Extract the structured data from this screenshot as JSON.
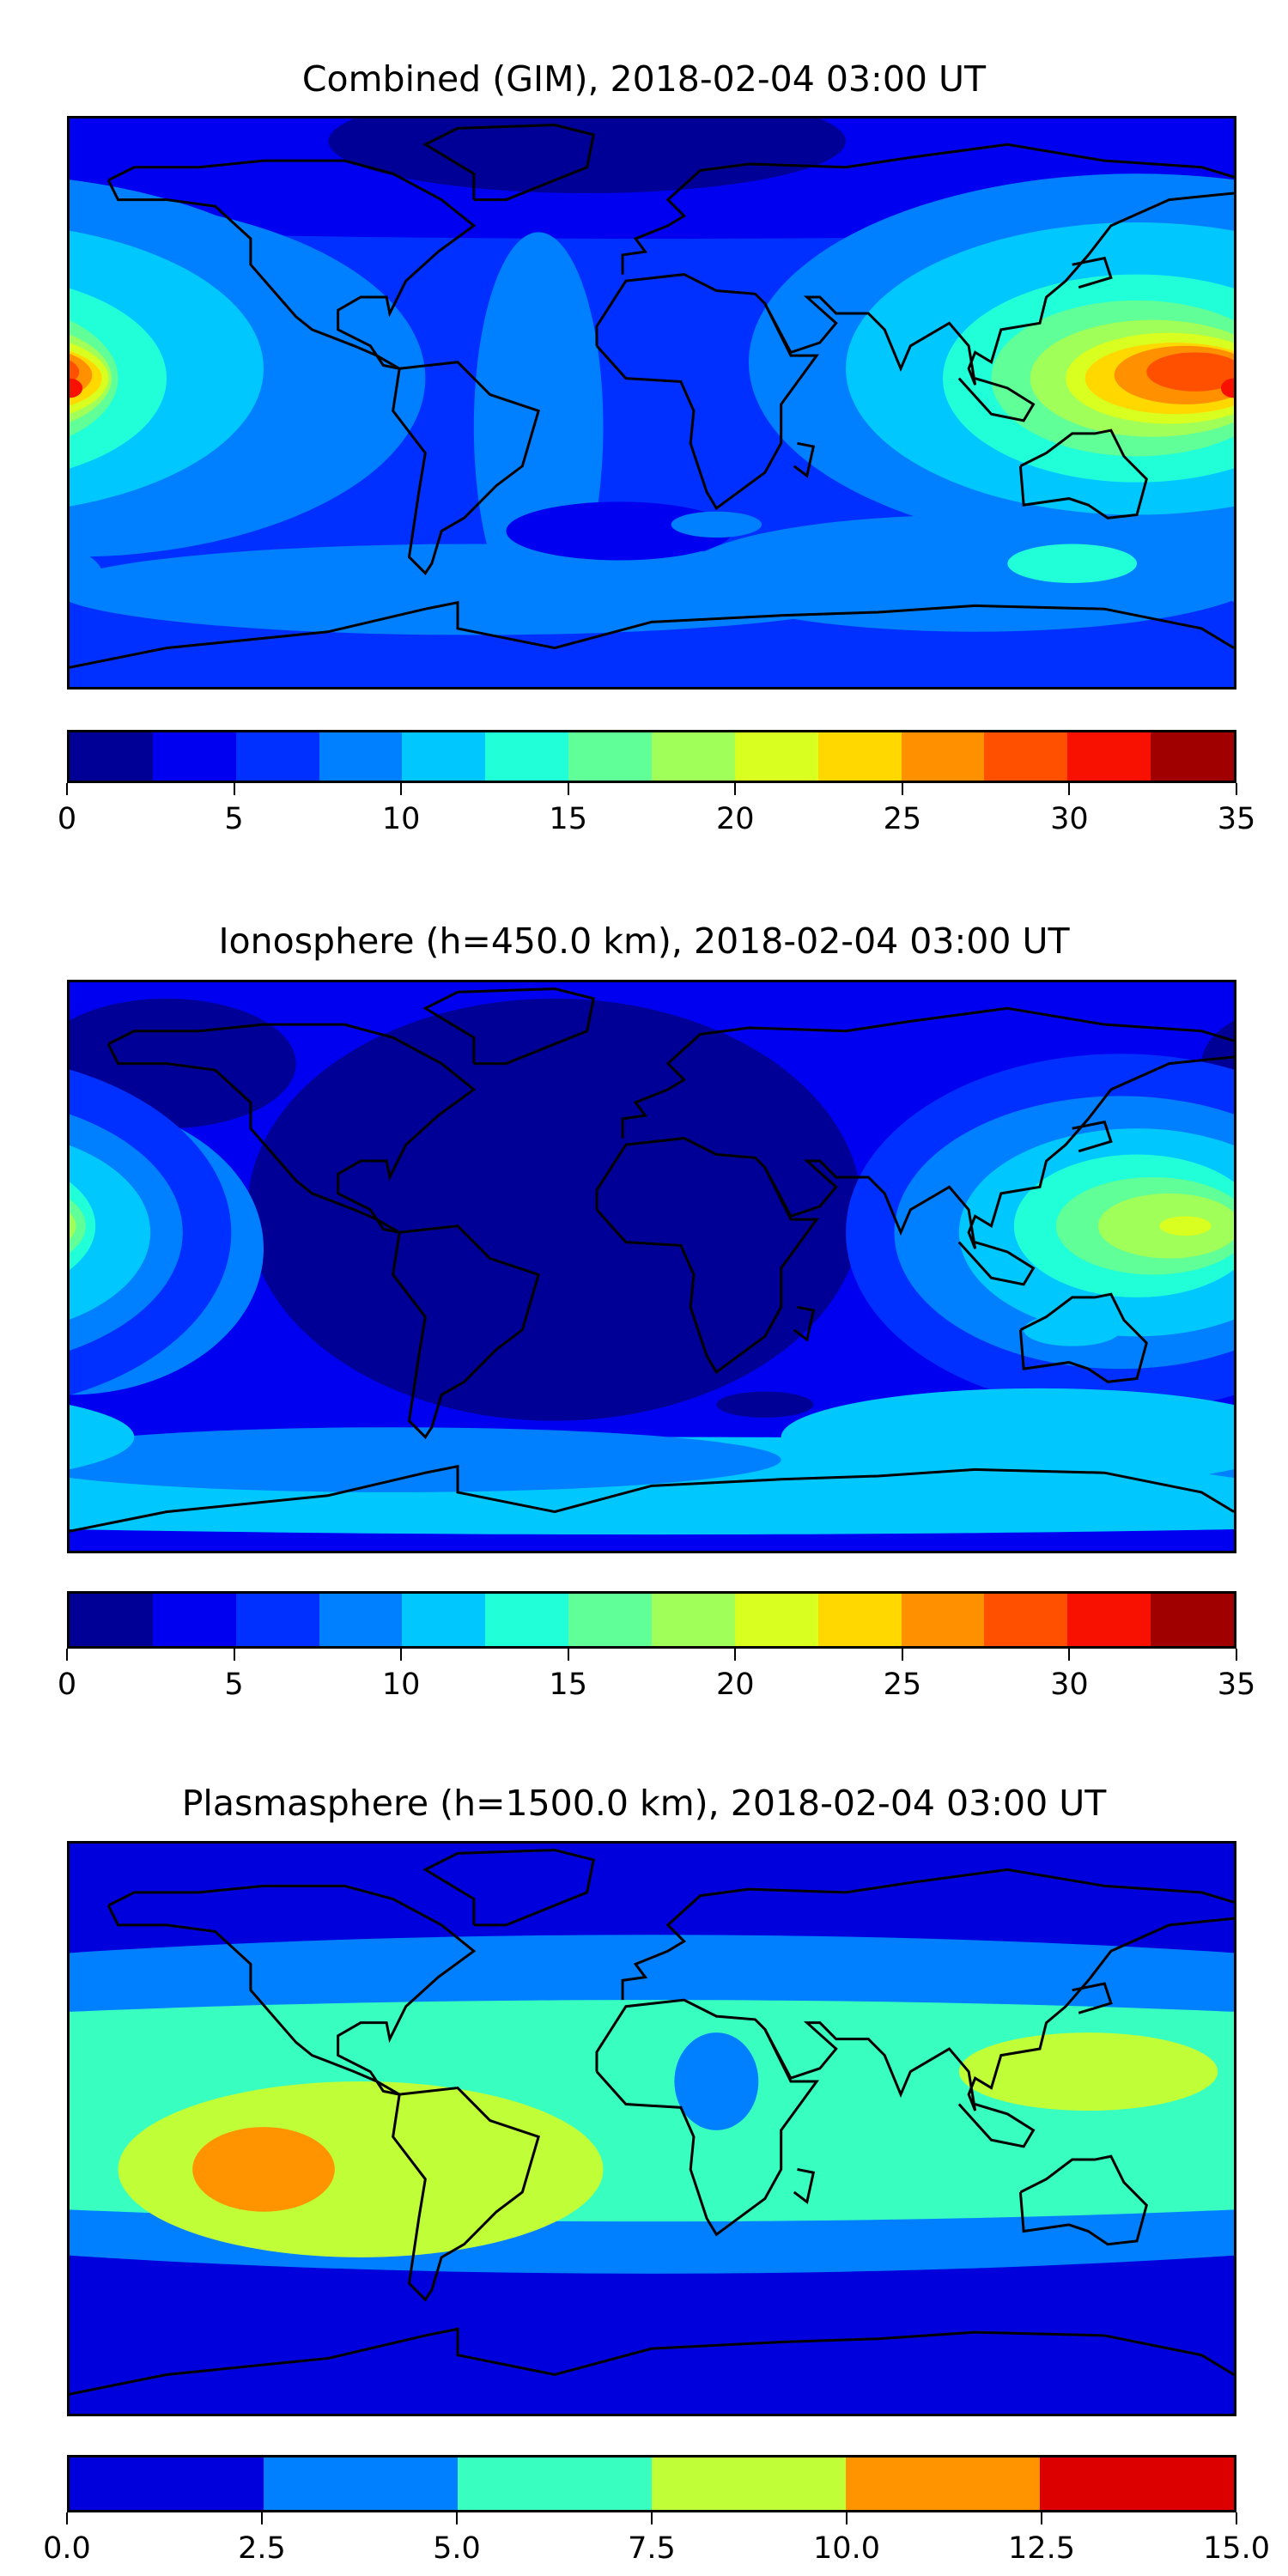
{
  "panels": [
    {
      "title": "Combined (GIM), 2018-02-04 03:00 UT",
      "colorbar": {
        "ticks": [
          "0",
          "5",
          "10",
          "15",
          "20",
          "25",
          "30",
          "35"
        ],
        "range": [
          0,
          35
        ],
        "levels": [
          0,
          2.5,
          5,
          7.5,
          10,
          12.5,
          15,
          17.5,
          20,
          22.5,
          25,
          27.5,
          30,
          32.5,
          35
        ],
        "colors": [
          "#000096",
          "#0000f0",
          "#0030ff",
          "#0080ff",
          "#00c8ff",
          "#20ffd8",
          "#60ff98",
          "#a0ff58",
          "#d8ff20",
          "#ffd800",
          "#ff9000",
          "#ff5000",
          "#f81000",
          "#a00000"
        ]
      }
    },
    {
      "title": "Ionosphere  (h=450.0 km), 2018-02-04 03:00 UT",
      "colorbar": {
        "ticks": [
          "0",
          "5",
          "10",
          "15",
          "20",
          "25",
          "30",
          "35"
        ],
        "range": [
          0,
          35
        ],
        "levels": [
          0,
          2.5,
          5,
          7.5,
          10,
          12.5,
          15,
          17.5,
          20,
          22.5,
          25,
          27.5,
          30,
          32.5,
          35
        ],
        "colors": [
          "#000096",
          "#0000f0",
          "#0030ff",
          "#0080ff",
          "#00c8ff",
          "#20ffd8",
          "#60ff98",
          "#a0ff58",
          "#d8ff20",
          "#ffd800",
          "#ff9000",
          "#ff5000",
          "#f81000",
          "#a00000"
        ]
      }
    },
    {
      "title": "Plasmasphere (h=1500.0 km), 2018-02-04 03:00 UT",
      "colorbar": {
        "ticks": [
          "0.0",
          "2.5",
          "5.0",
          "7.5",
          "10.0",
          "12.5",
          "15.0"
        ],
        "range": [
          0,
          15
        ],
        "levels": [
          0,
          2.5,
          5,
          7.5,
          10,
          12.5,
          15
        ],
        "colors": [
          "#0000dc",
          "#0080ff",
          "#38ffc0",
          "#c0ff38",
          "#ff9400",
          "#dc0000"
        ]
      }
    }
  ],
  "chart_data": [
    {
      "type": "heatmap",
      "title": "Combined (GIM), 2018-02-04 03:00 UT",
      "colorbar_range": [
        0,
        35
      ],
      "colorbar_ticks": [
        0,
        5,
        10,
        15,
        20,
        25,
        30,
        35
      ],
      "note": "filled contour world map; maxima ~30 near 180E equator and ~30 over W Pacific/Indonesia"
    },
    {
      "type": "heatmap",
      "title": "Ionosphere  (h=450.0 km), 2018-02-04 03:00 UT",
      "colorbar_range": [
        0,
        35
      ],
      "colorbar_ticks": [
        0,
        5,
        10,
        15,
        20,
        25,
        30,
        35
      ],
      "note": "maxima ~20 over W Pacific"
    },
    {
      "type": "heatmap",
      "title": "Plasmasphere (h=1500.0 km), 2018-02-04 03:00 UT",
      "colorbar_range": [
        0,
        15
      ],
      "colorbar_ticks": [
        0,
        2.5,
        5,
        7.5,
        10,
        12.5,
        15
      ],
      "note": "maximum ~10-12.5 over S Pacific"
    }
  ]
}
